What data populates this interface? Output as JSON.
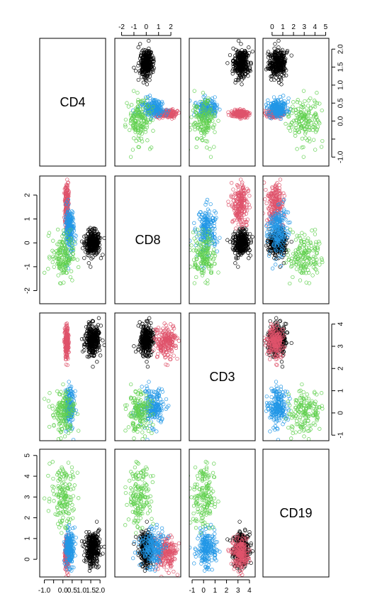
{
  "chart_data": {
    "type": "scatter",
    "variables": [
      "CD4",
      "CD8",
      "CD3",
      "CD19"
    ],
    "axis_ticks": {
      "CD4": [
        -1.0,
        -0.5,
        0.0,
        0.5,
        1.0,
        1.5,
        2.0
      ],
      "CD8": [
        -2,
        -1,
        0,
        1,
        2
      ],
      "CD3": [
        -1,
        0,
        1,
        2,
        3,
        4
      ],
      "CD19": [
        0,
        1,
        2,
        3,
        4,
        5
      ]
    },
    "axis_tick_labels": {
      "CD4": [
        "-1.0",
        "",
        "0.0",
        "0.5",
        "1.0",
        "1.5",
        "2.0"
      ],
      "CD8": [
        "-2",
        "-1",
        "0",
        "1",
        "2"
      ],
      "CD3": [
        "-1",
        "0",
        "1",
        "2",
        "3",
        "4"
      ],
      "CD19": [
        "0",
        "1",
        "2",
        "3",
        "4",
        "5"
      ]
    },
    "axis_ranges": {
      "CD4": [
        -1.25,
        2.3
      ],
      "CD8": [
        -2.55,
        2.8
      ],
      "CD3": [
        -1.25,
        4.5
      ],
      "CD19": [
        -0.85,
        5.3
      ]
    },
    "clusters": [
      {
        "color": "#000000",
        "n": 300,
        "mean": {
          "CD4": 1.6,
          "CD8": 0.0,
          "CD3": 3.3,
          "CD19": 0.5
        },
        "sd": {
          "CD4": 0.2,
          "CD8": 0.25,
          "CD3": 0.35,
          "CD19": 0.4
        }
      },
      {
        "color": "#DF536B",
        "n": 200,
        "mean": {
          "CD4": 0.2,
          "CD8": 1.6,
          "CD3": 3.2,
          "CD19": 0.3
        },
        "sd": {
          "CD4": 0.05,
          "CD8": 0.45,
          "CD3": 0.35,
          "CD19": 0.4
        }
      },
      {
        "color": "#2297E6",
        "n": 200,
        "mean": {
          "CD4": 0.35,
          "CD8": 0.5,
          "CD3": 0.3,
          "CD19": 0.5
        },
        "sd": {
          "CD4": 0.12,
          "CD8": 0.5,
          "CD3": 0.4,
          "CD19": 0.4
        }
      },
      {
        "color": "#61D04F",
        "n": 160,
        "mean": {
          "CD4": 0.0,
          "CD8": -0.5,
          "CD3": 0.0,
          "CD19": 3.0
        },
        "sd": {
          "CD4": 0.3,
          "CD8": 0.5,
          "CD3": 0.45,
          "CD19": 0.8
        }
      }
    ],
    "grid": false,
    "legend": "none"
  }
}
